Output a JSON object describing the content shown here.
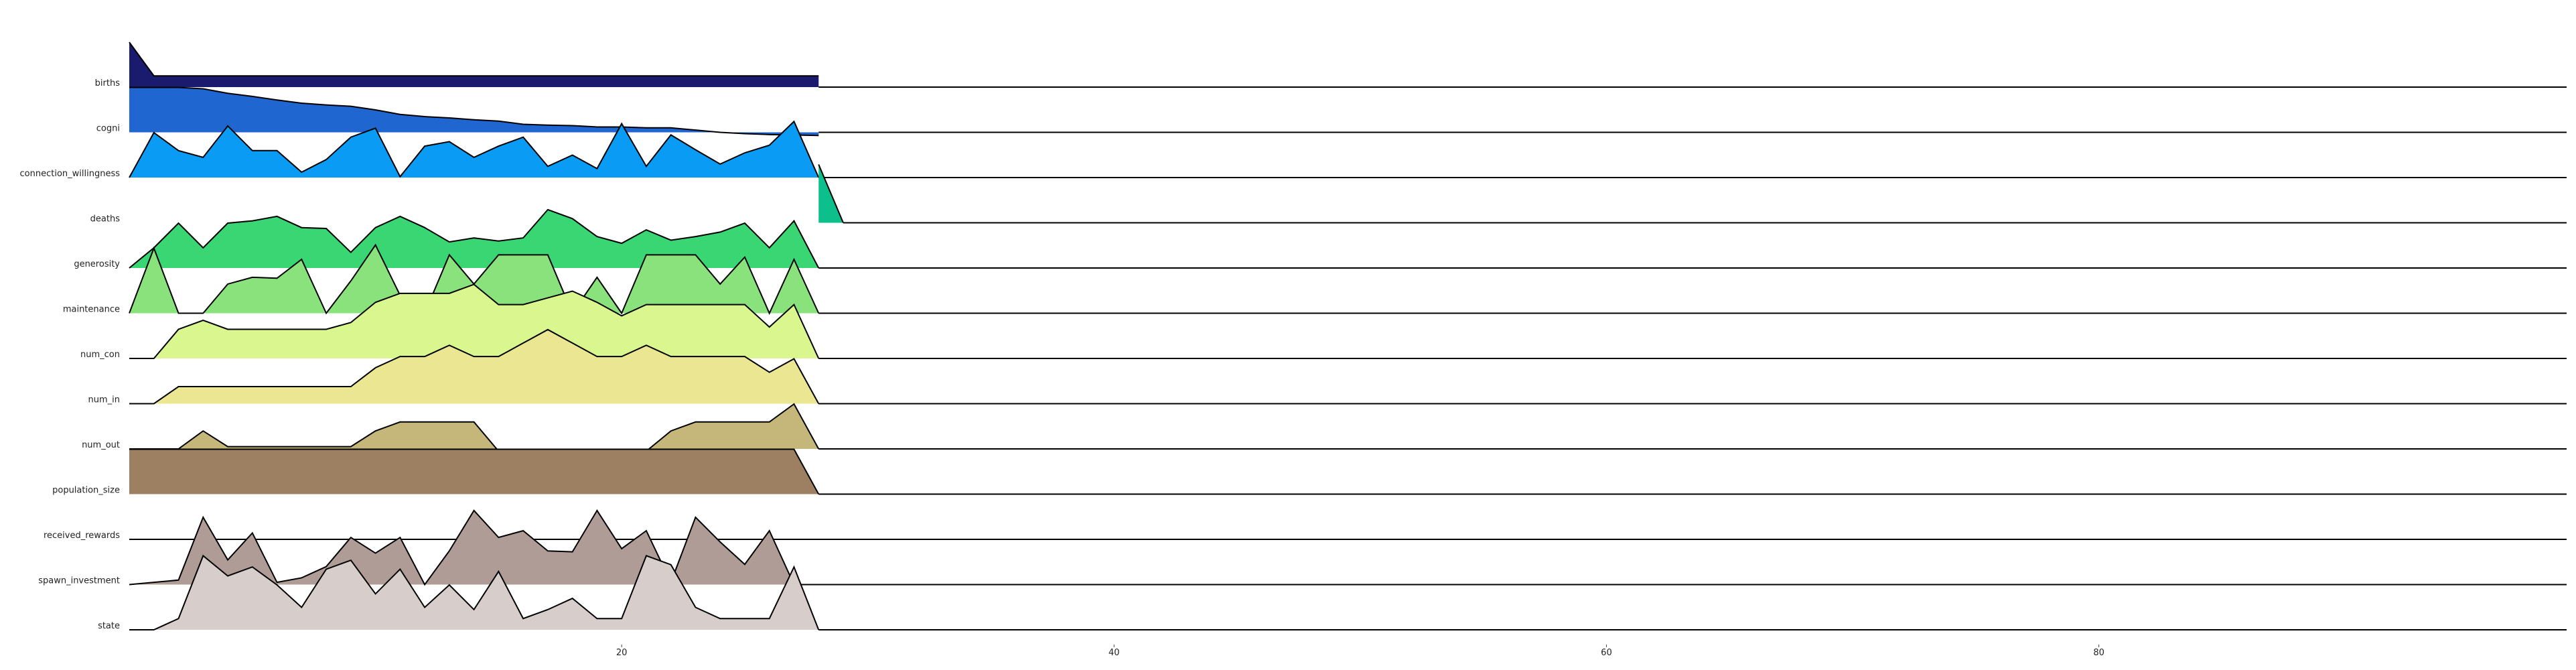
{
  "chart_data": {
    "type": "area",
    "subtype": "ridgeline",
    "xlim": [
      0,
      99
    ],
    "x_ticks": [
      20,
      40,
      60,
      80
    ],
    "grid": false,
    "legend": "none",
    "x": [
      0,
      1,
      2,
      3,
      4,
      5,
      6,
      7,
      8,
      9,
      10,
      11,
      12,
      13,
      14,
      15,
      16,
      17,
      18,
      19,
      20,
      21,
      22,
      23,
      24,
      25,
      26,
      27,
      28,
      29
    ],
    "series": [
      {
        "name": "births",
        "color": "#1a1a6e",
        "values": [
          1.0,
          0.25,
          0.25,
          0.25,
          0.25,
          0.25,
          0.25,
          0.25,
          0.25,
          0.25,
          0.25,
          0.25,
          0.25,
          0.25,
          0.25,
          0.25,
          0.25,
          0.25,
          0.25,
          0.25,
          0.25,
          0.25,
          0.25,
          0.25,
          0.25,
          0.25,
          0.25,
          0.25,
          0.25,
          null
        ]
      },
      {
        "name": "cogni",
        "color": "#1f66d0",
        "values": [
          1.0,
          1.0,
          1.0,
          0.97,
          0.87,
          0.8,
          0.72,
          0.65,
          0.61,
          0.58,
          0.5,
          0.4,
          0.35,
          0.32,
          0.28,
          0.25,
          0.18,
          0.16,
          0.15,
          0.12,
          0.12,
          0.1,
          0.1,
          0.05,
          0.0,
          -0.03,
          -0.05,
          -0.06,
          -0.07,
          null
        ]
      },
      {
        "name": "connection_willingness",
        "color": "#0a9cf5",
        "values": [
          0.0,
          1.0,
          0.6,
          0.45,
          1.15,
          0.6,
          0.6,
          0.12,
          0.4,
          0.9,
          1.1,
          0.02,
          0.7,
          0.8,
          0.45,
          0.7,
          0.9,
          0.25,
          0.5,
          0.2,
          1.2,
          0.25,
          0.95,
          0.62,
          0.3,
          0.55,
          0.72,
          1.25,
          0.0,
          null
        ]
      },
      {
        "name": "deaths",
        "color": "#0cbf8b",
        "values": [
          null,
          null,
          null,
          null,
          null,
          null,
          null,
          null,
          null,
          null,
          null,
          null,
          null,
          null,
          null,
          null,
          null,
          null,
          null,
          null,
          null,
          null,
          null,
          null,
          null,
          null,
          null,
          null,
          1.3,
          0.0
        ]
      },
      {
        "name": "generosity",
        "color": "#39d673",
        "values": [
          0.0,
          0.45,
          1.0,
          0.45,
          1.0,
          1.05,
          1.15,
          0.9,
          0.88,
          0.35,
          0.9,
          1.15,
          0.9,
          0.58,
          0.67,
          0.6,
          0.67,
          1.3,
          1.1,
          0.7,
          0.55,
          0.85,
          0.62,
          0.7,
          0.8,
          1.0,
          0.45,
          1.05,
          0.0,
          null
        ]
      },
      {
        "name": "maintenance",
        "color": "#8ae27c",
        "values": [
          0.0,
          1.45,
          0.0,
          0.0,
          0.65,
          0.8,
          0.78,
          1.2,
          0.0,
          0.72,
          1.52,
          0.4,
          0.0,
          1.3,
          0.65,
          1.3,
          1.3,
          1.3,
          0.0,
          0.8,
          0.0,
          1.3,
          1.3,
          1.3,
          0.65,
          1.25,
          0.0,
          1.2,
          0.0,
          null
        ]
      },
      {
        "name": "num_con",
        "color": "#d9f78e",
        "values": [
          0.0,
          0.0,
          0.65,
          0.85,
          0.65,
          0.65,
          0.65,
          0.65,
          0.65,
          0.8,
          1.25,
          1.45,
          1.45,
          1.45,
          1.65,
          1.2,
          1.2,
          1.35,
          1.5,
          1.25,
          0.95,
          1.2,
          1.2,
          1.2,
          1.2,
          1.2,
          0.7,
          1.2,
          0.0,
          null
        ]
      },
      {
        "name": "num_in",
        "color": "#ebe692",
        "values": [
          0.0,
          0.0,
          0.38,
          0.38,
          0.38,
          0.38,
          0.38,
          0.38,
          0.38,
          0.38,
          0.8,
          1.05,
          1.05,
          1.3,
          1.05,
          1.05,
          1.35,
          1.65,
          1.35,
          1.05,
          1.05,
          1.3,
          1.05,
          1.05,
          1.05,
          1.05,
          0.7,
          1.0,
          0.0,
          null
        ]
      },
      {
        "name": "num_out",
        "color": "#c5b67a",
        "values": [
          0.0,
          0.0,
          0.0,
          0.4,
          0.05,
          0.05,
          0.05,
          0.05,
          0.05,
          0.05,
          0.4,
          0.6,
          0.6,
          0.6,
          0.6,
          -0.05,
          -0.05,
          -0.05,
          -0.05,
          -0.05,
          -0.05,
          -0.05,
          0.4,
          0.6,
          0.6,
          0.6,
          0.6,
          1.0,
          0.0,
          null
        ]
      },
      {
        "name": "population_size",
        "color": "#9d7f61",
        "values": [
          1.0,
          1.0,
          1.0,
          1.0,
          1.0,
          1.0,
          1.0,
          1.0,
          1.0,
          1.0,
          1.0,
          1.0,
          1.0,
          1.0,
          1.0,
          1.0,
          1.0,
          1.0,
          1.0,
          1.0,
          1.0,
          1.0,
          1.0,
          1.0,
          1.0,
          1.0,
          1.0,
          1.0,
          0.0,
          null
        ]
      },
      {
        "name": "received_rewards",
        "color": "#ab9892",
        "values": [
          null,
          null,
          null,
          null,
          null,
          null,
          null,
          null,
          null,
          null,
          null,
          null,
          null,
          null,
          null,
          null,
          null,
          null,
          null,
          null,
          null,
          null,
          null,
          null,
          null,
          null,
          null,
          null,
          null,
          null
        ]
      },
      {
        "name": "spawn_investment",
        "color": "#b09c96",
        "values": [
          0.0,
          0.05,
          0.1,
          1.5,
          0.55,
          1.15,
          0.05,
          0.15,
          0.4,
          1.05,
          0.7,
          1.05,
          0.0,
          0.75,
          1.65,
          1.05,
          1.2,
          0.75,
          0.73,
          1.65,
          0.8,
          1.2,
          0.05,
          1.5,
          0.95,
          0.45,
          1.2,
          0.0,
          null,
          null
        ]
      },
      {
        "name": "state",
        "color": "#d7cdcb",
        "values": [
          0.0,
          0.0,
          0.25,
          1.65,
          1.2,
          1.4,
          1.0,
          0.5,
          1.35,
          1.55,
          0.8,
          1.35,
          0.5,
          1.0,
          0.45,
          1.3,
          0.25,
          0.45,
          0.7,
          0.25,
          0.25,
          1.65,
          1.45,
          0.5,
          0.25,
          0.25,
          0.25,
          1.4,
          0.0,
          null
        ]
      }
    ]
  }
}
